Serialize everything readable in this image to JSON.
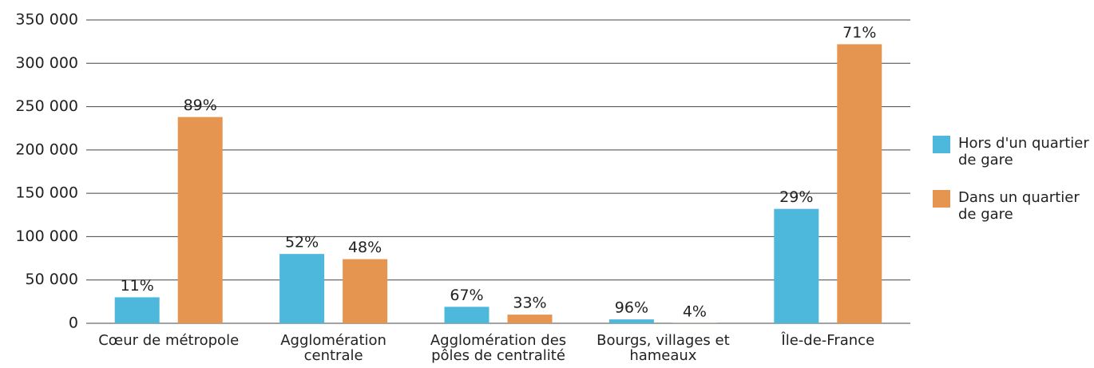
{
  "chart_data": {
    "type": "bar",
    "categories": [
      "Cœur de métropole",
      "Agglomération centrale",
      "Agglomération des pôles de centralité",
      "Bourgs, villages et hameaux",
      "Île-de-France"
    ],
    "series": [
      {
        "name": "Hors d'un quartier de gare",
        "color": "#4db8dc",
        "values": [
          30000,
          80000,
          19000,
          4500,
          132000
        ],
        "percent_labels": [
          "11%",
          "52%",
          "67%",
          "96%",
          "29%"
        ]
      },
      {
        "name": "Dans un quartier de gare",
        "color": "#e5954f",
        "values": [
          238000,
          74000,
          10000,
          200,
          322000
        ],
        "percent_labels": [
          "89%",
          "48%",
          "33%",
          "4%",
          "71%"
        ]
      }
    ],
    "ylim": [
      0,
      350000
    ],
    "yticks": [
      0,
      {
        "value": 50000,
        "label": "50 000"
      },
      {
        "value": 100000,
        "label": "100 000"
      },
      {
        "value": 150000,
        "label": "150 000"
      },
      {
        "value": 200000,
        "label": "200 000"
      },
      {
        "value": 250000,
        "label": "250 000"
      },
      {
        "value": 300000,
        "label": "300 000"
      },
      {
        "value": 350000,
        "label": "350 000"
      }
    ],
    "grid": true,
    "legend": "right"
  }
}
